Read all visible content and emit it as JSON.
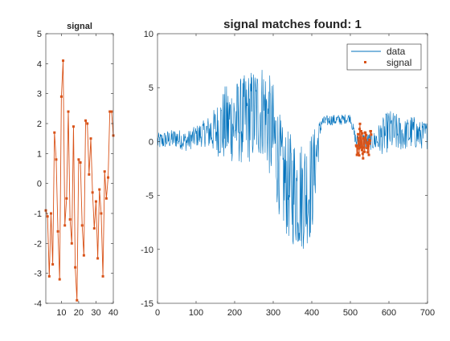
{
  "colors": {
    "data_line": "#0072BD",
    "signal_line": "#D95319",
    "axes": "#262626",
    "background": "#FFFFFF"
  },
  "chart_data": [
    {
      "type": "line",
      "title": "signal",
      "xlabel": "",
      "ylabel": "",
      "xlim": [
        1,
        40
      ],
      "ylim": [
        -4,
        5
      ],
      "xticks": [
        10,
        20,
        30,
        40
      ],
      "yticks": [
        -4,
        -3,
        -2,
        -1,
        0,
        1,
        2,
        3,
        4,
        5
      ],
      "marker": "square",
      "grid": false,
      "series": [
        {
          "name": "signal",
          "x": [
            1,
            2,
            3,
            4,
            5,
            6,
            7,
            8,
            9,
            10,
            11,
            12,
            13,
            14,
            15,
            16,
            17,
            18,
            19,
            20,
            21,
            22,
            23,
            24,
            25,
            26,
            27,
            28,
            29,
            30,
            31,
            32,
            33,
            34,
            35,
            36,
            37,
            38,
            39,
            40
          ],
          "values": [
            -0.9,
            -1.1,
            -3.1,
            -1.0,
            -2.7,
            1.7,
            0.8,
            -1.6,
            -3.2,
            2.9,
            4.1,
            -1.4,
            -0.5,
            2.4,
            -1.2,
            -2.0,
            1.9,
            -2.8,
            -3.9,
            0.8,
            0.7,
            -1.4,
            -2.4,
            2.1,
            2.0,
            0.3,
            1.5,
            -0.3,
            -1.5,
            -0.6,
            -2.5,
            -0.2,
            -1.0,
            -3.1,
            0.4,
            -0.5,
            0.2,
            2.4,
            2.4,
            1.6
          ]
        }
      ]
    },
    {
      "type": "line",
      "title": "signal matches found: 1",
      "xlabel": "",
      "ylabel": "",
      "xlim": [
        0,
        700
      ],
      "ylim": [
        -15,
        10
      ],
      "xticks": [
        0,
        100,
        200,
        300,
        400,
        500,
        600,
        700
      ],
      "yticks": [
        -15,
        -10,
        -5,
        0,
        5,
        10
      ],
      "grid": false,
      "legend": {
        "position": "top-right",
        "entries": [
          "data",
          "signal"
        ]
      },
      "series": [
        {
          "name": "data",
          "style": "line",
          "envelope_x": [
            0,
            25,
            50,
            75,
            100,
            125,
            150,
            175,
            200,
            225,
            250,
            275,
            300,
            325,
            350,
            375,
            400,
            425,
            450,
            475,
            500,
            515,
            530,
            545,
            560,
            580,
            600,
            620,
            640,
            660,
            680,
            700
          ],
          "envelope_center": [
            0.0,
            0.2,
            0.3,
            0.0,
            0.5,
            0.8,
            1.0,
            1.6,
            1.8,
            2.0,
            2.5,
            3.0,
            0.5,
            -3.5,
            -4.5,
            -5.0,
            -4.0,
            1.8,
            2.0,
            2.0,
            2.2,
            0.0,
            0.0,
            0.0,
            0.0,
            0.4,
            1.0,
            0.8,
            0.6,
            0.9,
            0.6,
            0.6
          ],
          "envelope_amplitude": [
            0.8,
            0.8,
            0.9,
            0.9,
            1.0,
            1.3,
            2.2,
            3.6,
            3.8,
            4.2,
            4.4,
            4.4,
            5.0,
            4.8,
            5.2,
            5.2,
            5.0,
            0.5,
            0.5,
            0.5,
            0.4,
            0.6,
            0.8,
            0.8,
            0.8,
            1.6,
            2.0,
            1.8,
            1.4,
            1.6,
            1.3,
            1.3
          ]
        },
        {
          "name": "signal",
          "style": "line+marker",
          "x_start": 515,
          "x_end": 554,
          "values_scale": 0.4
        }
      ]
    }
  ]
}
